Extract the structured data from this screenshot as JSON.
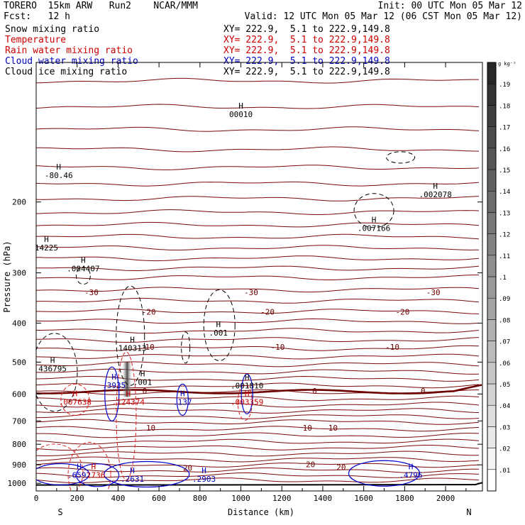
{
  "header": {
    "line1_left": "TORERO  15km ARW   Run2    NCAR/MMM",
    "line1_right": "Init: 00 UTC Mon 05 Mar 12",
    "line2_left": "Fcst:   12 h",
    "line2_right": "Valid: 12 UTC Mon 05 Mar 12 (06 CST Mon 05 Mar 12)"
  },
  "fields": [
    {
      "name": "Snow mixing ratio",
      "xy": "XY= 222.9,  5.1 to 222.9,149.8",
      "color": "#000000"
    },
    {
      "name": "Temperature",
      "xy": "XY= 222.9,  5.1 to 222.9,149.8",
      "color": "#cc0000"
    },
    {
      "name": "Rain water mixing ratio",
      "xy": "XY= 222.9,  5.1 to 222.9,149.8",
      "color": "#cc0000"
    },
    {
      "name": "Cloud water mixing ratio",
      "xy": "XY= 222.9,  5.1 to 222.9,149.8",
      "color": "#0000bb"
    },
    {
      "name": "Cloud ice mixing ratio",
      "xy": "XY= 222.9,  5.1 to 222.9,149.8",
      "color": "#000000"
    }
  ],
  "chart_data": {
    "type": "contour-cross-section",
    "xlabel": "Distance (km)",
    "ylabel": "Pressure (hPa)",
    "x_ticks": [
      0,
      200,
      400,
      600,
      800,
      1000,
      1200,
      1400,
      1600,
      1800,
      2000
    ],
    "y_ticks": [
      200,
      300,
      400,
      500,
      600,
      700,
      800,
      900,
      1000
    ],
    "xlim": [
      0,
      2180
    ],
    "ylim": [
      1045,
      90
    ],
    "y_scale": "log",
    "x_end_labels": {
      "left": "S",
      "right": "N"
    },
    "colorbar": {
      "unit": "g kg⁻¹",
      "ticks": [
        ".01",
        ".02",
        ".03",
        ".04",
        ".05",
        ".06",
        ".07",
        ".08",
        ".09",
        ".1",
        ".11",
        ".12",
        ".13",
        ".14",
        ".15",
        ".16",
        ".17",
        ".18",
        ".19"
      ]
    },
    "temperature_labels": [
      {
        "x": 270,
        "p": 335,
        "text": "-30"
      },
      {
        "x": 1050,
        "p": 335,
        "text": "-30"
      },
      {
        "x": 1940,
        "p": 335,
        "text": "-30"
      },
      {
        "x": 550,
        "p": 375,
        "text": "-20"
      },
      {
        "x": 1130,
        "p": 375,
        "text": "-20"
      },
      {
        "x": 1790,
        "p": 375,
        "text": "-20"
      },
      {
        "x": 555,
        "p": 458,
        "text": "10"
      },
      {
        "x": 1180,
        "p": 458,
        "text": "-10"
      },
      {
        "x": 1740,
        "p": 458,
        "text": "-10"
      },
      {
        "x": 530,
        "p": 590,
        "text": "0"
      },
      {
        "x": 1360,
        "p": 590,
        "text": "0"
      },
      {
        "x": 1890,
        "p": 590,
        "text": "0"
      },
      {
        "x": 560,
        "p": 728,
        "text": "10"
      },
      {
        "x": 1325,
        "p": 728,
        "text": "10"
      },
      {
        "x": 1450,
        "p": 728,
        "text": "10"
      },
      {
        "x": 740,
        "p": 915,
        "text": "20"
      },
      {
        "x": 1340,
        "p": 898,
        "text": "20"
      },
      {
        "x": 1490,
        "p": 912,
        "text": "20"
      }
    ],
    "extrema": [
      {
        "x": 110,
        "p": 173,
        "value": "-80.46",
        "color": "#000000"
      },
      {
        "x": 1000,
        "p": 122,
        "value": "00010",
        "color": "#000000"
      },
      {
        "x": 1950,
        "p": 193,
        "value": ".002078",
        "color": "#000000"
      },
      {
        "x": 1650,
        "p": 234,
        "value": ".007166",
        "color": "#000000"
      },
      {
        "x": 50,
        "p": 262,
        "value": "14225",
        "color": "#000000"
      },
      {
        "x": 230,
        "p": 295,
        "value": ".004407",
        "color": "#000000"
      },
      {
        "x": 890,
        "p": 426,
        "value": ".001",
        "color": "#000000"
      },
      {
        "x": 470,
        "p": 465,
        "value": "140313",
        "color": "#000000"
      },
      {
        "x": 80,
        "p": 523,
        "value": "436795",
        "color": "#000000"
      },
      {
        "x": 380,
        "p": 575,
        "value": ".3935",
        "color": "#0000bb"
      },
      {
        "x": 520,
        "p": 565,
        "value": ".001",
        "color": "#000000"
      },
      {
        "x": 1030,
        "p": 576,
        "value": ".001810",
        "color": "#000000"
      },
      {
        "x": 190,
        "p": 633,
        "value": ".007638",
        "color": "#cc0000"
      },
      {
        "x": 450,
        "p": 633,
        "value": ".124374",
        "color": "#cc0000"
      },
      {
        "x": 715,
        "p": 633,
        "value": ".137",
        "color": "#0000bb"
      },
      {
        "x": 1030,
        "p": 633,
        "value": ".003359",
        "color": "#cc0000"
      },
      {
        "x": 210,
        "p": 962,
        "value": ".6592",
        "color": "#0000bb"
      },
      {
        "x": 280,
        "p": 962,
        "value": ".1736",
        "color": "#cc0000"
      },
      {
        "x": 470,
        "p": 984,
        "value": ".2631",
        "color": "#0000bb"
      },
      {
        "x": 820,
        "p": 984,
        "value": ".2903",
        "color": "#0000bb"
      },
      {
        "x": 1830,
        "p": 962,
        "value": ".4796",
        "color": "#0000bb"
      }
    ]
  }
}
